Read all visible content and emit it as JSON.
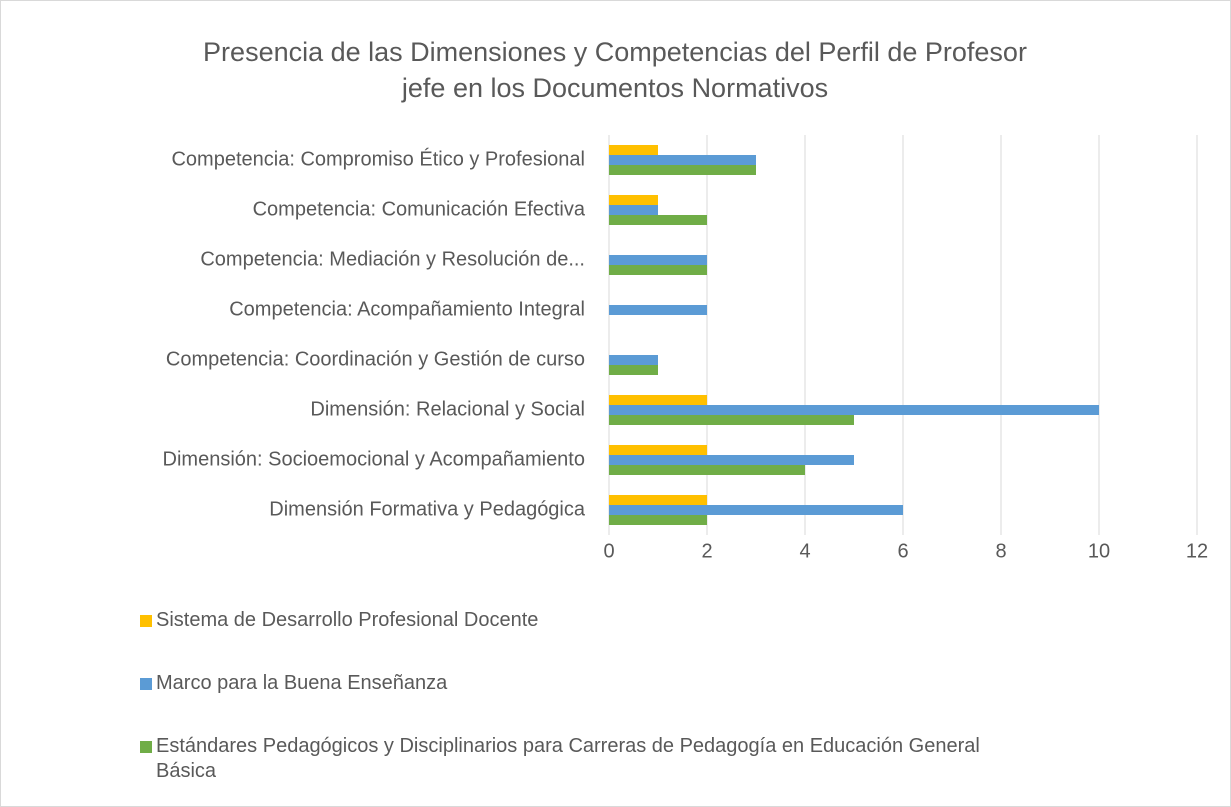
{
  "chart_data": {
    "type": "hbar",
    "title": "Presencia de las Dimensiones y Competencias del Perfil de Profesor jefe en los Documentos Normativos",
    "categories": [
      "Competencia: Compromiso Ético y Profesional",
      "Competencia: Comunicación Efectiva",
      "Competencia: Mediación y Resolución de...",
      "Competencia: Acompañamiento Integral",
      "Competencia: Coordinación y Gestión de curso",
      "Dimensión: Relacional y Social",
      "Dimensión: Socioemocional y Acompañamiento",
      "Dimensión Formativa y Pedagógica"
    ],
    "series": [
      {
        "name": "Sistema de Desarrollo Profesional Docente",
        "color": "#ffc000",
        "values": [
          1,
          1,
          0,
          0,
          0,
          2,
          2,
          2
        ]
      },
      {
        "name": "Marco para la Buena Enseñanza",
        "color": "#5b9bd5",
        "values": [
          3,
          1,
          2,
          2,
          1,
          10,
          5,
          6
        ]
      },
      {
        "name": "Estándares Pedagógicos y Disciplinarios para Carreras de Pedagogía en Educación General Básica",
        "color": "#70ad47",
        "values": [
          3,
          2,
          2,
          0,
          1,
          5,
          4,
          2
        ]
      }
    ],
    "xlim": [
      0,
      12
    ],
    "xticks": [
      0,
      2,
      4,
      6,
      8,
      10,
      12
    ],
    "grid": true,
    "legend": "bottom"
  }
}
